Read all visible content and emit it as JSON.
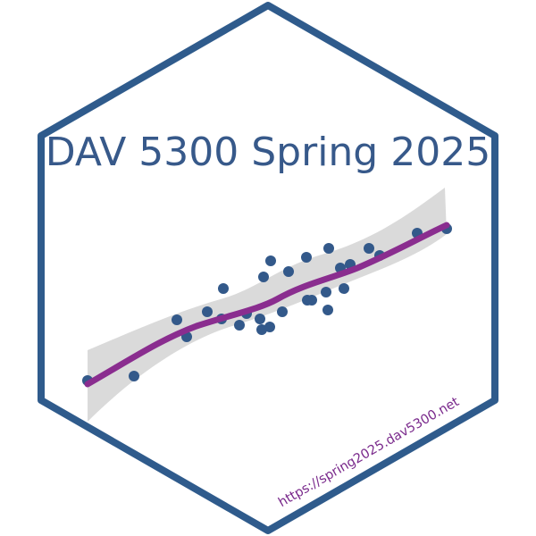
{
  "title": "DAV 5300 Spring 2025",
  "url": "https://spring2025.dav5300.net"
}
